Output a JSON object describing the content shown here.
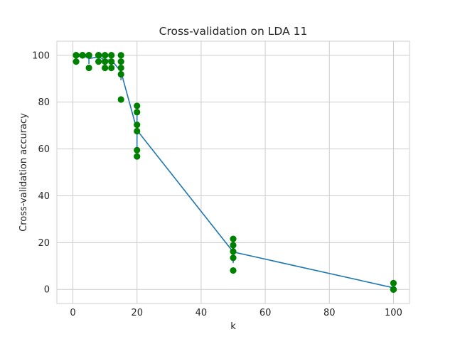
{
  "chart_data": {
    "type": "scatter",
    "title": "Cross-validation on LDA 11",
    "xlabel": "k",
    "ylabel": "Cross-validation accuracy",
    "xlim": [
      -5,
      105
    ],
    "ylim": [
      -6,
      106
    ],
    "x_ticks": [
      0,
      20,
      40,
      60,
      80,
      100
    ],
    "y_ticks": [
      0,
      20,
      40,
      60,
      80,
      100
    ],
    "grid": true,
    "colors": {
      "points": "#008000",
      "mean_line": "#1f77b4",
      "grid": "#cccccc",
      "axes_edge": "#cccccc"
    },
    "series": [
      {
        "kind": "scatter",
        "points": [
          [
            1,
            100
          ],
          [
            1,
            100
          ],
          [
            1,
            100
          ],
          [
            1,
            97.3
          ],
          [
            3,
            100
          ],
          [
            3,
            100
          ],
          [
            3,
            100
          ],
          [
            3,
            100
          ],
          [
            5,
            100
          ],
          [
            5,
            100
          ],
          [
            5,
            100
          ],
          [
            5,
            94.6
          ],
          [
            8,
            100
          ],
          [
            8,
            100
          ],
          [
            8,
            100
          ],
          [
            8,
            97.3
          ],
          [
            10,
            100
          ],
          [
            10,
            100
          ],
          [
            10,
            97.3
          ],
          [
            10,
            94.6
          ],
          [
            12,
            100
          ],
          [
            12,
            100
          ],
          [
            12,
            97.3
          ],
          [
            12,
            94.6
          ],
          [
            15,
            100
          ],
          [
            15,
            97.3
          ],
          [
            15,
            94.6
          ],
          [
            15,
            91.9
          ],
          [
            15,
            81.1
          ],
          [
            20,
            78.4
          ],
          [
            20,
            75.7
          ],
          [
            20,
            70.3
          ],
          [
            20,
            67.6
          ],
          [
            20,
            59.5
          ],
          [
            20,
            56.8
          ],
          [
            50,
            21.6
          ],
          [
            50,
            18.9
          ],
          [
            50,
            16.2
          ],
          [
            50,
            13.5
          ],
          [
            50,
            8.1
          ],
          [
            100,
            2.7
          ],
          [
            100,
            0
          ],
          [
            100,
            0
          ],
          [
            100,
            0
          ]
        ]
      },
      {
        "kind": "errorbar-line",
        "x": [
          1,
          3,
          5,
          8,
          10,
          12,
          15,
          20,
          50,
          100
        ],
        "y": [
          99.3,
          100,
          98.6,
          99.3,
          98.0,
          98.0,
          93.0,
          68.0,
          16.0,
          0.7
        ],
        "err": [
          1.2,
          0,
          2.3,
          1.2,
          2.4,
          2.4,
          3.6,
          7.5,
          4.7,
          1.2
        ]
      }
    ]
  }
}
